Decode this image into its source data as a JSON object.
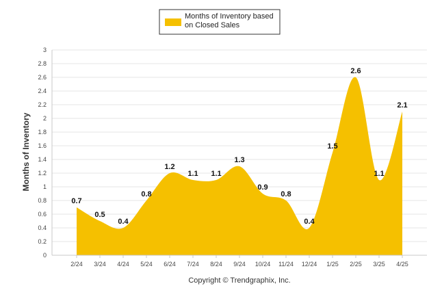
{
  "chart_data": {
    "type": "area",
    "categories": [
      "2/24",
      "3/24",
      "4/24",
      "5/24",
      "6/24",
      "7/24",
      "8/24",
      "9/24",
      "10/24",
      "11/24",
      "12/24",
      "1/25",
      "2/25",
      "3/25",
      "4/25"
    ],
    "series": [
      {
        "name": "Months of Inventory based on Closed Sales",
        "values": [
          0.7,
          0.5,
          0.4,
          0.8,
          1.2,
          1.1,
          1.1,
          1.3,
          0.9,
          0.8,
          0.4,
          1.5,
          2.6,
          1.1,
          2.1
        ],
        "labels": [
          "0.7",
          "0.5",
          "0.4",
          "0.8",
          "1.2",
          "1.1",
          "1.1",
          "1.3",
          "0.9",
          "0.8",
          "0.4",
          "1.5",
          "2.6",
          "1.1",
          "2.1"
        ]
      }
    ],
    "legend": {
      "line1": "Months of Inventory based",
      "line2": "on Closed Sales",
      "placement": "top-center"
    },
    "ylabel": "Months of Inventory",
    "ylim": [
      0,
      3
    ],
    "yticks": [
      "0",
      "0.2",
      "0.4",
      "0.6",
      "0.8",
      "1",
      "1.2",
      "1.4",
      "1.6",
      "1.8",
      "2",
      "2.2",
      "2.4",
      "2.6",
      "2.8",
      "3"
    ],
    "grid": true,
    "colors": {
      "fill": "#F5C000",
      "legend_swatch": "#F5C000"
    }
  },
  "footer": {
    "copyright": "Copyright © Trendgraphix, Inc."
  }
}
